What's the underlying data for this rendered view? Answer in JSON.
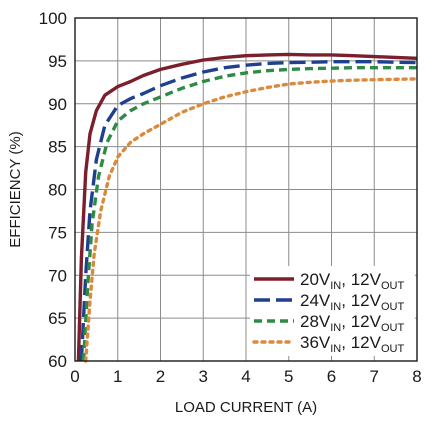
{
  "chart_data": {
    "type": "line",
    "xlabel": "LOAD CURRENT (A)",
    "ylabel": "EFFICIENCY (%)",
    "xlim": [
      0,
      8
    ],
    "ylim": [
      60,
      100
    ],
    "x_ticks": [
      "0",
      "1",
      "2",
      "3",
      "4",
      "5",
      "6",
      "7",
      "8"
    ],
    "y_ticks": [
      "60",
      "65",
      "70",
      "75",
      "80",
      "85",
      "90",
      "95",
      "100"
    ],
    "grid": true,
    "legend_position": "bottom-right",
    "series": [
      {
        "name": "20V",
        "name_sub": "IN",
        "name_rest": ", 12V",
        "name_rest_sub": "OUT",
        "color": "#7a1f2b",
        "dash": "solid",
        "x": [
          0.08,
          0.15,
          0.25,
          0.35,
          0.5,
          0.7,
          1.0,
          1.3,
          1.6,
          2.0,
          2.5,
          3.0,
          3.5,
          4.0,
          4.5,
          5.0,
          5.5,
          6.0,
          6.5,
          7.0,
          7.5,
          8.0
        ],
        "y": [
          60.0,
          72.0,
          82.0,
          86.5,
          89.2,
          91.0,
          92.0,
          92.6,
          93.3,
          94.0,
          94.6,
          95.1,
          95.4,
          95.6,
          95.7,
          95.75,
          95.7,
          95.7,
          95.6,
          95.5,
          95.4,
          95.3
        ]
      },
      {
        "name": "24V",
        "name_sub": "IN",
        "name_rest": ", 12V",
        "name_rest_sub": "OUT",
        "color": "#1f3f8f",
        "dash": "long-dash",
        "x": [
          0.15,
          0.25,
          0.35,
          0.5,
          0.7,
          1.0,
          1.3,
          1.6,
          2.0,
          2.5,
          3.0,
          3.5,
          4.0,
          4.5,
          5.0,
          5.5,
          6.0,
          6.5,
          7.0,
          7.5,
          8.0
        ],
        "y": [
          60.0,
          70.0,
          77.5,
          83.5,
          87.5,
          89.8,
          90.6,
          91.2,
          92.1,
          93.0,
          93.7,
          94.2,
          94.5,
          94.7,
          94.8,
          94.85,
          94.9,
          94.9,
          94.9,
          94.85,
          94.8
        ]
      },
      {
        "name": "28V",
        "name_sub": "IN",
        "name_rest": ", 12V",
        "name_rest_sub": "OUT",
        "color": "#2e8b45",
        "dash": "dash",
        "x": [
          0.2,
          0.3,
          0.4,
          0.55,
          0.75,
          1.0,
          1.3,
          1.6,
          2.0,
          2.5,
          3.0,
          3.5,
          4.0,
          4.5,
          5.0,
          5.5,
          6.0,
          6.5,
          7.0,
          7.5,
          8.0
        ],
        "y": [
          60.0,
          69.0,
          76.0,
          81.5,
          85.5,
          88.0,
          89.2,
          90.0,
          90.8,
          91.8,
          92.6,
          93.2,
          93.6,
          93.85,
          94.0,
          94.1,
          94.15,
          94.2,
          94.2,
          94.2,
          94.2
        ]
      },
      {
        "name": "36V",
        "name_sub": "IN",
        "name_rest": ", 12V",
        "name_rest_sub": "OUT",
        "color": "#d98a3c",
        "dash": "dot",
        "x": [
          0.25,
          0.35,
          0.45,
          0.6,
          0.8,
          1.0,
          1.3,
          1.6,
          2.0,
          2.5,
          3.0,
          3.5,
          4.0,
          4.5,
          5.0,
          5.5,
          6.0,
          6.5,
          7.0,
          7.5,
          8.0
        ],
        "y": [
          60.0,
          67.0,
          72.5,
          77.5,
          81.5,
          83.8,
          85.5,
          86.5,
          87.6,
          89.0,
          90.0,
          90.8,
          91.4,
          91.9,
          92.3,
          92.5,
          92.65,
          92.75,
          92.8,
          92.85,
          92.9
        ]
      }
    ]
  }
}
